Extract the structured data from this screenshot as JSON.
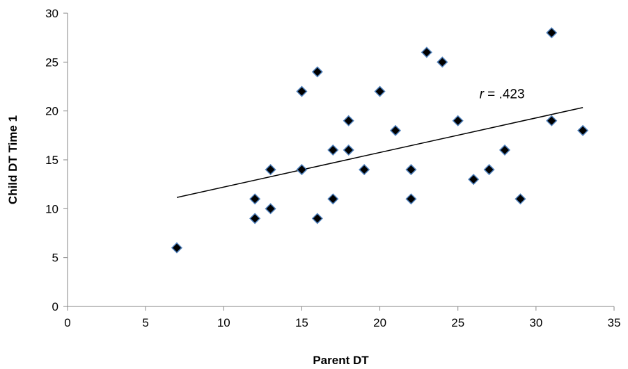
{
  "chart_data": {
    "type": "scatter",
    "xlabel": "Parent DT",
    "ylabel": "Child DT Time 1",
    "xlim": [
      0,
      35
    ],
    "ylim": [
      0,
      30
    ],
    "x_ticks": [
      0,
      5,
      10,
      15,
      20,
      25,
      30,
      35
    ],
    "y_ticks": [
      0,
      5,
      10,
      15,
      20,
      25,
      30
    ],
    "grid": false,
    "marker": "diamond",
    "marker_fill": "#000000",
    "marker_edge": "#4f81bd",
    "points": [
      {
        "x": 7,
        "y": 6
      },
      {
        "x": 12,
        "y": 11
      },
      {
        "x": 12,
        "y": 9
      },
      {
        "x": 13,
        "y": 14
      },
      {
        "x": 13,
        "y": 10
      },
      {
        "x": 15,
        "y": 22
      },
      {
        "x": 15,
        "y": 14
      },
      {
        "x": 16,
        "y": 24
      },
      {
        "x": 16,
        "y": 9
      },
      {
        "x": 17,
        "y": 16
      },
      {
        "x": 17,
        "y": 11
      },
      {
        "x": 18,
        "y": 19
      },
      {
        "x": 18,
        "y": 16
      },
      {
        "x": 19,
        "y": 14
      },
      {
        "x": 20,
        "y": 22
      },
      {
        "x": 21,
        "y": 18
      },
      {
        "x": 22,
        "y": 14
      },
      {
        "x": 22,
        "y": 11
      },
      {
        "x": 23,
        "y": 26
      },
      {
        "x": 24,
        "y": 25
      },
      {
        "x": 25,
        "y": 19
      },
      {
        "x": 26,
        "y": 13
      },
      {
        "x": 27,
        "y": 14
      },
      {
        "x": 28,
        "y": 16
      },
      {
        "x": 29,
        "y": 11
      },
      {
        "x": 31,
        "y": 28
      },
      {
        "x": 31,
        "y": 19
      },
      {
        "x": 33,
        "y": 18
      }
    ],
    "trendline": {
      "x1": 7,
      "y1": 11.15,
      "x2": 33,
      "y2": 20.35
    },
    "annotation": {
      "var": "r",
      "text": " = .423",
      "x": 27,
      "y": 22
    }
  }
}
